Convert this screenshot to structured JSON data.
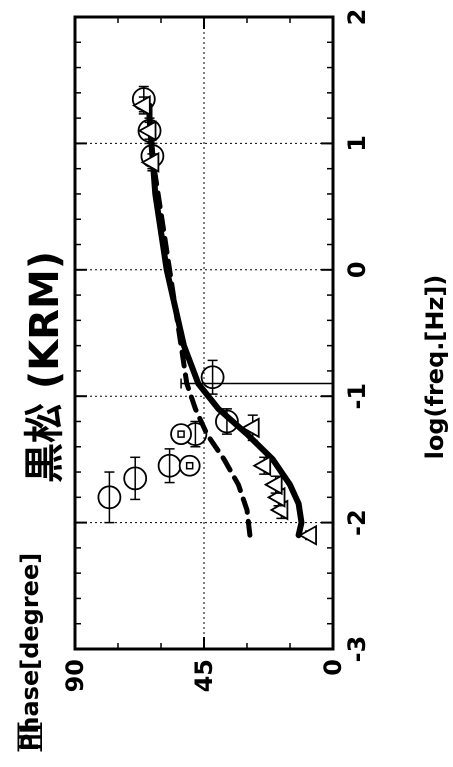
{
  "panel_label": "Ⅲ",
  "chart_data": {
    "type": "scatter",
    "title": "黒松 (KRM)",
    "xlabel": "log(freq.[Hz])",
    "ylabel": "Phase[degree]",
    "xlim": [
      -3,
      2
    ],
    "ylim": [
      0,
      90
    ],
    "x_ticks": [
      "-3",
      "-2",
      "-1",
      "0",
      "1",
      "2"
    ],
    "y_ticks": [
      "0",
      "45",
      "90"
    ],
    "grid": true,
    "series": [
      {
        "marker": "circle",
        "points": [
          {
            "x": -1.8,
            "y": 78,
            "err": 0.6
          },
          {
            "x": -1.65,
            "y": 69,
            "err": 0.5
          },
          {
            "x": -1.55,
            "y": 57,
            "err": 0.4
          },
          {
            "x": -1.3,
            "y": 48,
            "err": 0.3
          },
          {
            "x": -1.2,
            "y": 37,
            "err": 0.3
          },
          {
            "x": -0.85,
            "y": 42,
            "err": 0.4
          },
          {
            "x": 0.9,
            "y": 63,
            "err": 0.3
          },
          {
            "x": 1.1,
            "y": 64,
            "err": 0.3
          },
          {
            "x": 1.35,
            "y": 66,
            "err": 0.3
          }
        ]
      },
      {
        "marker": "triangle",
        "points": [
          {
            "x": -2.1,
            "y": 8,
            "err": 0.1
          },
          {
            "x": -1.9,
            "y": 18,
            "err": 0.2
          },
          {
            "x": -1.8,
            "y": 19,
            "err": 0.2
          },
          {
            "x": -1.7,
            "y": 20,
            "err": 0.2
          },
          {
            "x": -1.55,
            "y": 24,
            "err": 0.2
          },
          {
            "x": -1.25,
            "y": 28,
            "err": 0.3
          },
          {
            "x": 0.85,
            "y": 63,
            "err": 0.2
          },
          {
            "x": 1.1,
            "y": 64,
            "err": 0.2
          },
          {
            "x": 1.3,
            "y": 66,
            "err": 0.2
          }
        ]
      },
      {
        "marker": "square",
        "points": [
          {
            "x": -1.55,
            "y": 50,
            "err": 0.05
          },
          {
            "x": -1.3,
            "y": 53,
            "err": 0.05
          }
        ]
      },
      {
        "style": "solid",
        "points": [
          {
            "x": -2.1,
            "y": 12
          },
          {
            "x": -2.0,
            "y": 11
          },
          {
            "x": -1.85,
            "y": 12
          },
          {
            "x": -1.7,
            "y": 15
          },
          {
            "x": -1.5,
            "y": 21
          },
          {
            "x": -1.3,
            "y": 30
          },
          {
            "x": -1.1,
            "y": 40
          },
          {
            "x": -0.9,
            "y": 47
          },
          {
            "x": -0.6,
            "y": 52
          },
          {
            "x": -0.3,
            "y": 55
          },
          {
            "x": 0.0,
            "y": 58
          },
          {
            "x": 0.3,
            "y": 60
          },
          {
            "x": 0.6,
            "y": 62
          },
          {
            "x": 0.9,
            "y": 63
          },
          {
            "x": 1.2,
            "y": 64
          },
          {
            "x": 1.3,
            "y": 64
          }
        ]
      },
      {
        "style": "dashed",
        "points": [
          {
            "x": -2.1,
            "y": 29
          },
          {
            "x": -1.9,
            "y": 30
          },
          {
            "x": -1.7,
            "y": 33
          },
          {
            "x": -1.5,
            "y": 38
          },
          {
            "x": -1.3,
            "y": 44
          },
          {
            "x": -1.1,
            "y": 48
          },
          {
            "x": -0.9,
            "y": 51
          },
          {
            "x": -0.6,
            "y": 53
          },
          {
            "x": -0.3,
            "y": 55
          },
          {
            "x": 0.0,
            "y": 57
          },
          {
            "x": 0.3,
            "y": 59
          },
          {
            "x": 0.6,
            "y": 61
          },
          {
            "x": 0.9,
            "y": 63
          },
          {
            "x": 1.2,
            "y": 64
          },
          {
            "x": 1.4,
            "y": 65
          }
        ]
      }
    ],
    "reference_lines": [
      {
        "x": -0.9,
        "y_from": 0,
        "y_to": 53
      }
    ]
  }
}
